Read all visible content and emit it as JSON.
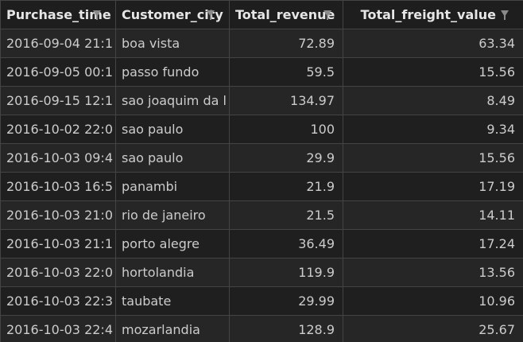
{
  "columns": [
    {
      "label": "Purchase_time",
      "align": "left",
      "icon": "filter-icon"
    },
    {
      "label": "Customer_city",
      "align": "left",
      "icon": "filter-icon"
    },
    {
      "label": "Total_revenue",
      "align": "right",
      "icon": "filter-icon"
    },
    {
      "label": "Total_freight_value",
      "align": "right",
      "icon": "filter-icon"
    }
  ],
  "rows": [
    {
      "purchase_time": "2016-09-04 21:1",
      "customer_city": "boa vista",
      "total_revenue": "72.89",
      "total_freight_value": "63.34"
    },
    {
      "purchase_time": "2016-09-05 00:1",
      "customer_city": "passo fundo",
      "total_revenue": "59.5",
      "total_freight_value": "15.56"
    },
    {
      "purchase_time": "2016-09-15 12:1",
      "customer_city": "sao joaquim da l",
      "total_revenue": "134.97",
      "total_freight_value": "8.49"
    },
    {
      "purchase_time": "2016-10-02 22:0",
      "customer_city": "sao paulo",
      "total_revenue": "100",
      "total_freight_value": "9.34"
    },
    {
      "purchase_time": "2016-10-03 09:4",
      "customer_city": "sao paulo",
      "total_revenue": "29.9",
      "total_freight_value": "15.56"
    },
    {
      "purchase_time": "2016-10-03 16:5",
      "customer_city": "panambi",
      "total_revenue": "21.9",
      "total_freight_value": "17.19"
    },
    {
      "purchase_time": "2016-10-03 21:0",
      "customer_city": "rio de janeiro",
      "total_revenue": "21.5",
      "total_freight_value": "14.11"
    },
    {
      "purchase_time": "2016-10-03 21:1",
      "customer_city": "porto alegre",
      "total_revenue": "36.49",
      "total_freight_value": "17.24"
    },
    {
      "purchase_time": "2016-10-03 22:0",
      "customer_city": "hortolandia",
      "total_revenue": "119.9",
      "total_freight_value": "13.56"
    },
    {
      "purchase_time": "2016-10-03 22:3",
      "customer_city": "taubate",
      "total_revenue": "29.99",
      "total_freight_value": "10.96"
    },
    {
      "purchase_time": "2016-10-03 22:4",
      "customer_city": "mozarlandia",
      "total_revenue": "128.9",
      "total_freight_value": "25.67"
    }
  ],
  "colors": {
    "background": "#1e1e1e",
    "row_odd": "#262626",
    "row_even": "#1f1f1f",
    "border": "#444444",
    "text": "#cccccc",
    "header_text": "#e6e6e6"
  }
}
